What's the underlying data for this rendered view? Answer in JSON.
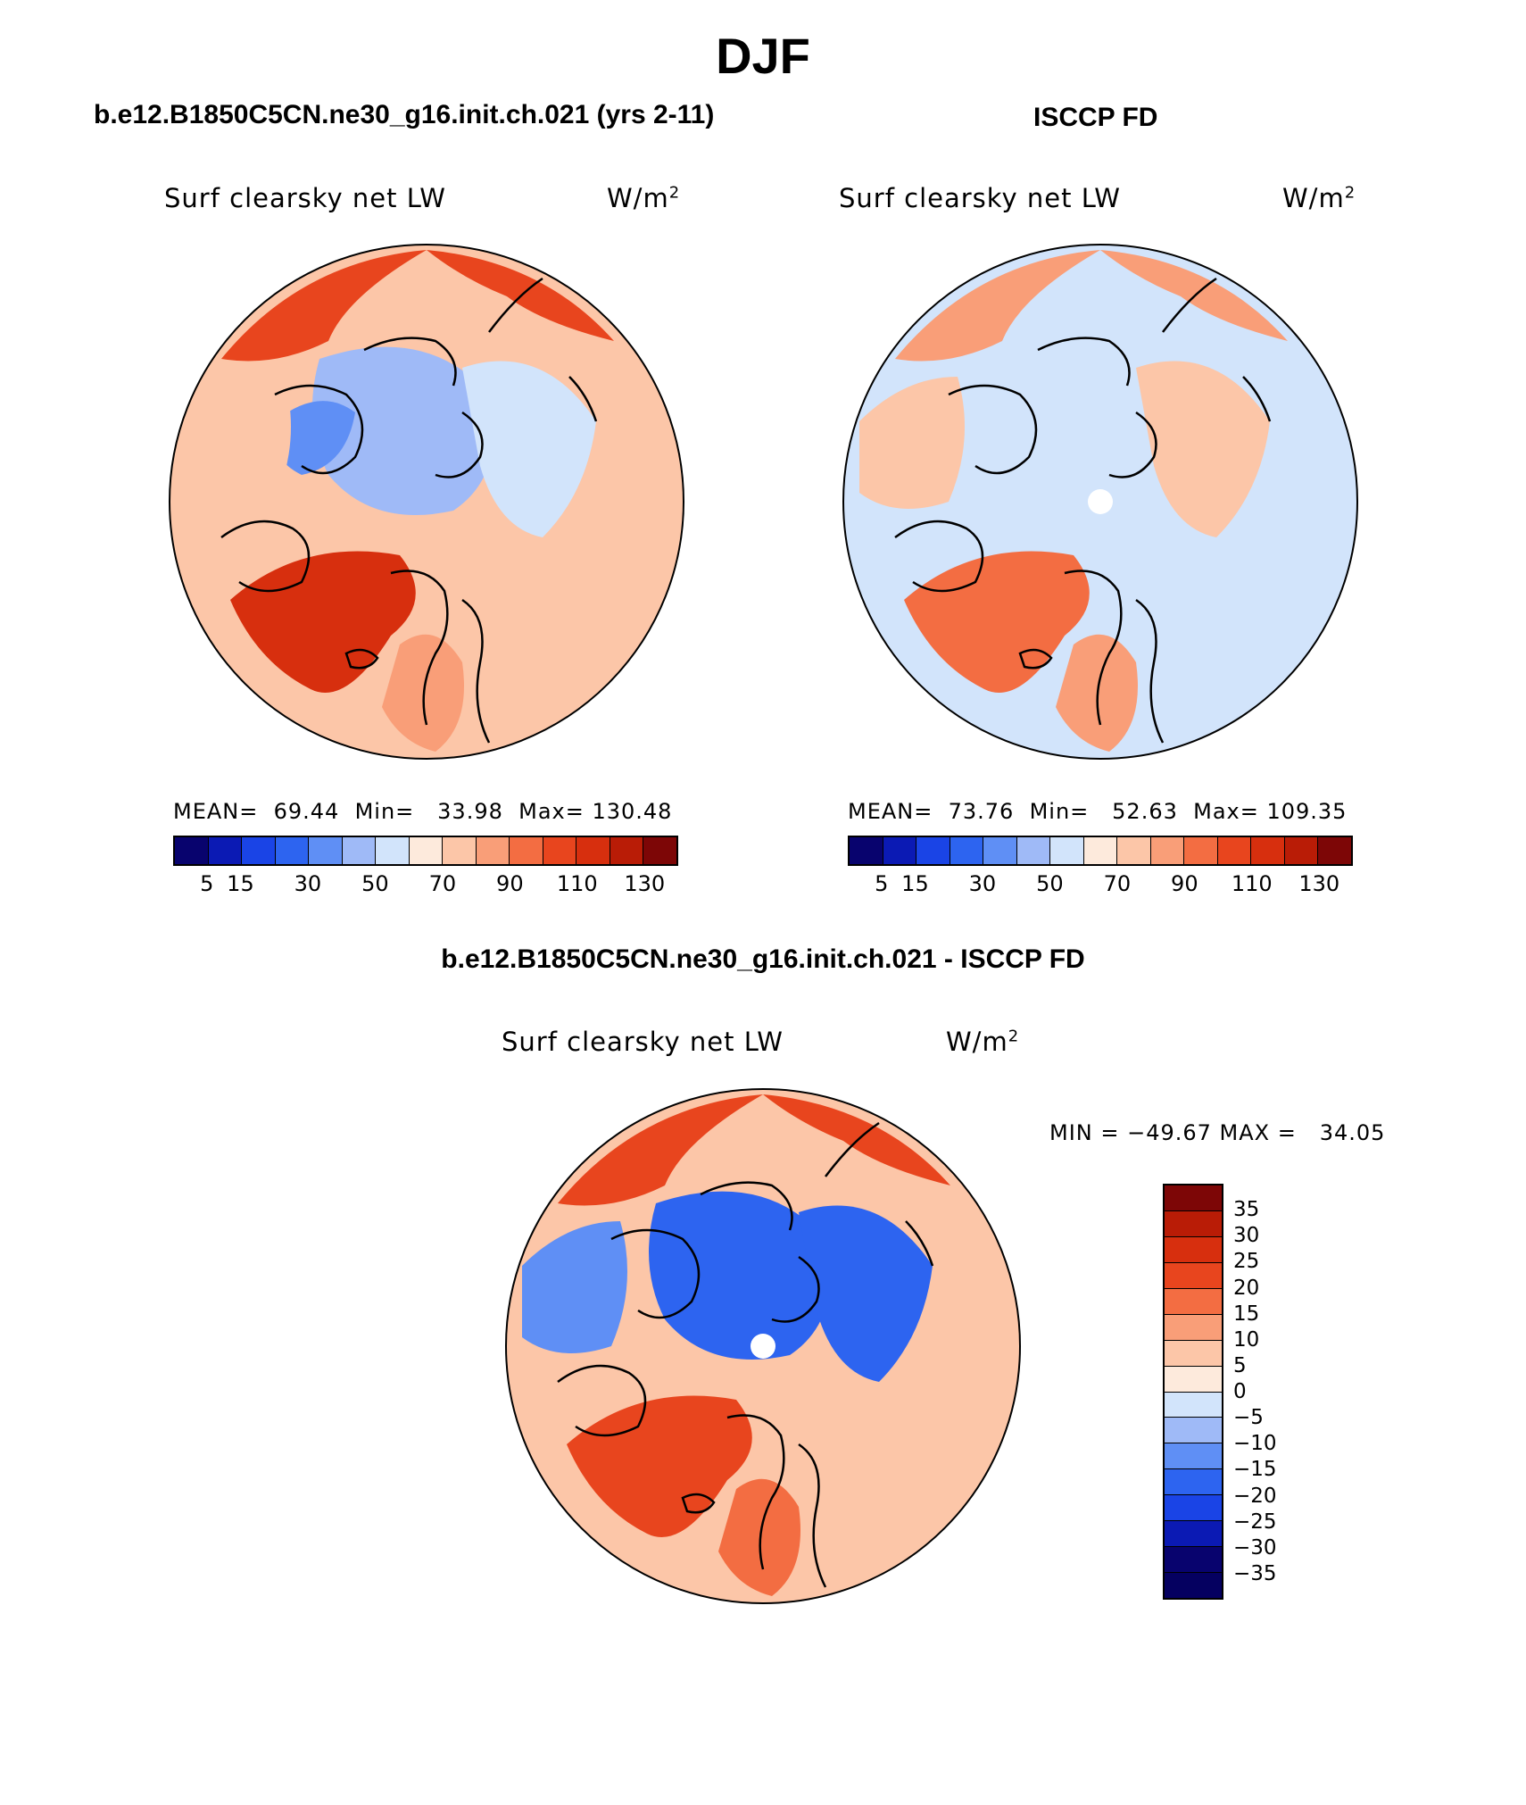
{
  "figure": {
    "season": "DJF",
    "bottom_title": "b.e12.B1850C5CN.ne30_g16.init.ch.021 - ISCCP FD"
  },
  "palette_hex": [
    "#08036e",
    "#0b1ab4",
    "#1a44e6",
    "#2d64f0",
    "#5f8ff5",
    "#9fbaf7",
    "#d2e4fb",
    "#fdeadc",
    "#fcc6a8",
    "#f99e78",
    "#f36d42",
    "#e8451e",
    "#d72f0e",
    "#b91c06",
    "#7d0606"
  ],
  "panels": [
    {
      "id": "model",
      "title": "b.e12.B1850C5CN.ne30_g16.init.ch.021 (yrs 2-11)",
      "variable": "Surf clearsky net LW",
      "units": "W/m",
      "units_exp": "2",
      "stats_text": "MEAN=  69.44  Min=   33.98  Max= 130.48",
      "colorbar_ticks": [
        "5",
        "15",
        "30",
        "50",
        "70",
        "90",
        "110",
        "130"
      ],
      "regions": [
        {
          "name": "arctic-ocean",
          "level": 5
        },
        {
          "name": "canadian-archipelago",
          "level": 4
        },
        {
          "name": "north-pacific",
          "level": 11
        },
        {
          "name": "north-atlantic",
          "level": 12
        },
        {
          "name": "siberia",
          "level": 6
        },
        {
          "name": "europe",
          "level": 9
        },
        {
          "name": "north-america",
          "level": 8
        }
      ]
    },
    {
      "id": "obs",
      "title": "ISCCP FD",
      "variable": "Surf clearsky net LW",
      "units": "W/m",
      "units_exp": "2",
      "stats_text": "MEAN=  73.76  Min=   52.63  Max= 109.35",
      "colorbar_ticks": [
        "5",
        "15",
        "30",
        "50",
        "70",
        "90",
        "110",
        "130"
      ],
      "regions": [
        {
          "name": "arctic-ocean",
          "level": 6
        },
        {
          "name": "north-pacific",
          "level": 9
        },
        {
          "name": "north-atlantic",
          "level": 10
        },
        {
          "name": "europe",
          "level": 9
        },
        {
          "name": "siberia",
          "level": 8
        },
        {
          "name": "north-america",
          "level": 8
        }
      ]
    },
    {
      "id": "diff",
      "variable": "Surf clearsky net LW",
      "units": "W/m",
      "units_exp": "2",
      "minmax_text": "MIN = −49.67 MAX =   34.05",
      "colorbar_ticks": [
        "35",
        "30",
        "25",
        "20",
        "15",
        "10",
        "5",
        "0",
        "−5",
        "−10",
        "−15",
        "−20",
        "−25",
        "−30",
        "−35"
      ],
      "colorbar_colors": [
        "#7d0606",
        "#b91c06",
        "#d72f0e",
        "#e8451e",
        "#f36d42",
        "#f99e78",
        "#fcc6a8",
        "#fdeadc",
        "#d2e4fb",
        "#9fbaf7",
        "#5f8ff5",
        "#2d64f0",
        "#1a44e6",
        "#0b1ab4",
        "#08036e",
        "#050060"
      ],
      "regions": [
        {
          "name": "arctic-ocean",
          "level": 3
        },
        {
          "name": "siberia",
          "level": 3
        },
        {
          "name": "north-pacific",
          "level": 11
        },
        {
          "name": "north-atlantic",
          "level": 11
        },
        {
          "name": "europe",
          "level": 10
        },
        {
          "name": "north-america",
          "level": 4
        }
      ]
    }
  ]
}
